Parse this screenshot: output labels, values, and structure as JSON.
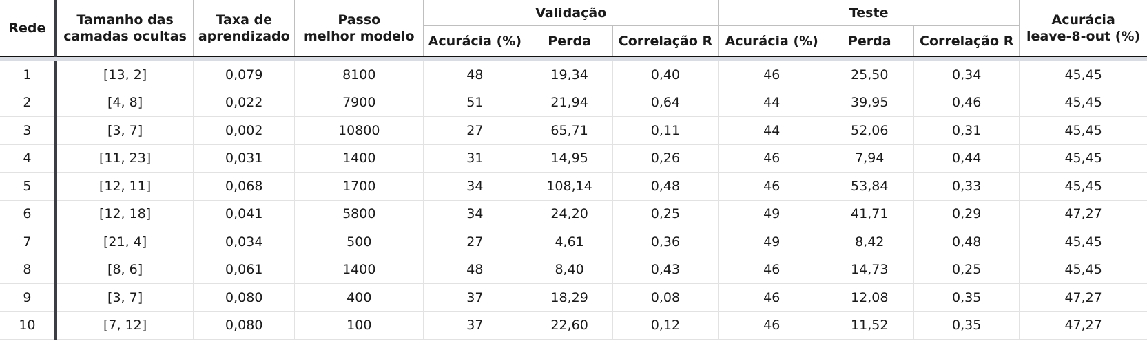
{
  "headers": {
    "rede": "Rede",
    "tamanho_l1": "Tamanho das",
    "tamanho_l2": "camadas ocultas",
    "taxa_l1": "Taxa de",
    "taxa_l2": "aprendizado",
    "passo_l1": "Passo",
    "passo_l2": "melhor modelo",
    "validacao": "Validação",
    "teste": "Teste",
    "acuracia_l1": "Acurácia",
    "acuracia_l2": "leave-8-out  (%)",
    "val_acuracia": "Acurácia (%)",
    "val_perda": "Perda",
    "val_corr": "Correlação R",
    "test_acuracia": "Acurácia  (%)",
    "test_perda": "Perda",
    "test_corr": "Correlação R"
  },
  "rows": [
    [
      "1",
      "[13, 2]",
      "0,079",
      "8100",
      "48",
      "19,34",
      "0,40",
      "46",
      "25,50",
      "0,34",
      "45,45"
    ],
    [
      "2",
      "[4, 8]",
      "0,022",
      "7900",
      "51",
      "21,94",
      "0,64",
      "44",
      "39,95",
      "0,46",
      "45,45"
    ],
    [
      "3",
      "[3, 7]",
      "0,002",
      "10800",
      "27",
      "65,71",
      "0,11",
      "44",
      "52,06",
      "0,31",
      "45,45"
    ],
    [
      "4",
      "[11, 23]",
      "0,031",
      "1400",
      "31",
      "14,95",
      "0,26",
      "46",
      "7,94",
      "0,44",
      "45,45"
    ],
    [
      "5",
      "[12, 11]",
      "0,068",
      "1700",
      "34",
      "108,14",
      "0,48",
      "46",
      "53,84",
      "0,33",
      "45,45"
    ],
    [
      "6",
      "[12, 18]",
      "0,041",
      "5800",
      "34",
      "24,20",
      "0,25",
      "49",
      "41,71",
      "0,29",
      "47,27"
    ],
    [
      "7",
      "[21, 4]",
      "0,034",
      "500",
      "27",
      "4,61",
      "0,36",
      "49",
      "8,42",
      "0,48",
      "45,45"
    ],
    [
      "8",
      "[8, 6]",
      "0,061",
      "1400",
      "48",
      "8,40",
      "0,43",
      "46",
      "14,73",
      "0,25",
      "45,45"
    ],
    [
      "9",
      "[3, 7]",
      "0,080",
      "400",
      "37",
      "18,29",
      "0,08",
      "46",
      "12,08",
      "0,35",
      "47,27"
    ],
    [
      "10",
      "[7, 12]",
      "0,080",
      "100",
      "37",
      "22,60",
      "0,12",
      "46",
      "11,52",
      "0,35",
      "47,27"
    ]
  ]
}
